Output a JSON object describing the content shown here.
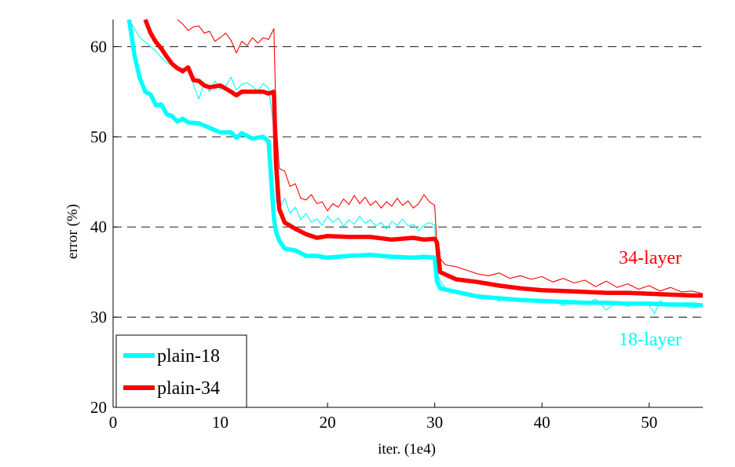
{
  "chart_data": {
    "type": "line",
    "xlabel": "iter. (1e4)",
    "ylabel": "error (%)",
    "xlim": [
      0,
      55
    ],
    "ylim": [
      20,
      63
    ],
    "x_ticks": [
      0,
      10,
      20,
      30,
      40,
      50
    ],
    "x_tick_labels": [
      "0",
      "10",
      "20",
      "30",
      "40",
      "50"
    ],
    "y_ticks": [
      20,
      30,
      40,
      50,
      60
    ],
    "y_tick_labels": [
      "20",
      "30",
      "40",
      "50",
      "60"
    ],
    "grid": "horizontal dashed",
    "legend": {
      "position": "bottom-left",
      "entries": [
        "plain-18",
        "plain-34"
      ]
    },
    "annotations": [
      {
        "text": "34-layer",
        "x": 52,
        "y": 34.5,
        "color": "#ff0000"
      },
      {
        "text": "18-layer",
        "x": 52,
        "y": 29.5,
        "color": "#00ffff"
      }
    ],
    "series": [
      {
        "name": "plain-18",
        "color": "#00ffff",
        "style": "thick",
        "x": [
          1.5,
          2,
          2.5,
          3,
          3.5,
          4,
          4.5,
          5,
          5.5,
          6,
          6.5,
          7,
          8,
          9,
          10,
          11,
          11.5,
          12,
          13,
          14,
          14.5,
          15,
          15.2,
          15.5,
          16,
          17,
          18,
          19,
          20,
          22,
          24,
          26,
          28,
          29,
          30,
          30.2,
          30.5,
          32,
          34,
          36,
          38,
          40,
          42,
          44,
          46,
          48,
          50,
          52,
          54,
          55
        ],
        "y": [
          63,
          59,
          56.5,
          55,
          54.7,
          53.5,
          53.6,
          52.5,
          52.3,
          51.7,
          52,
          51.6,
          51.5,
          51,
          50.5,
          50.5,
          49.9,
          50.4,
          49.8,
          50,
          49.5,
          41,
          39.5,
          38.5,
          37.6,
          37.4,
          36.8,
          36.8,
          36.6,
          36.8,
          36.9,
          36.7,
          36.6,
          36.7,
          36.6,
          34,
          33.2,
          32.8,
          32.3,
          32.1,
          31.9,
          31.8,
          31.7,
          31.6,
          31.6,
          31.5,
          31.5,
          31.4,
          31.4,
          31.3
        ]
      },
      {
        "name": "plain-34",
        "color": "#ff0000",
        "style": "thick",
        "x": [
          3,
          3.5,
          4,
          4.5,
          5,
          5.5,
          6,
          6.5,
          7,
          7.5,
          8,
          8.5,
          9,
          10,
          11,
          11.5,
          12,
          13,
          14,
          14.5,
          15,
          15.2,
          15.5,
          16,
          17,
          18,
          19,
          20,
          22,
          24,
          26,
          28,
          29,
          30,
          30.2,
          30.5,
          32,
          34,
          36,
          38,
          40,
          42,
          44,
          46,
          48,
          50,
          52,
          54,
          55
        ],
        "y": [
          63,
          61.5,
          60.5,
          59.8,
          58.9,
          58.1,
          57.6,
          57.3,
          57.7,
          56.3,
          56.2,
          55.7,
          55.5,
          55.7,
          55,
          54.6,
          55,
          55,
          55,
          54.8,
          55,
          47,
          42,
          40.5,
          39.8,
          39.2,
          38.8,
          39,
          38.9,
          38.9,
          38.6,
          38.8,
          38.6,
          38.7,
          38.3,
          35,
          34.2,
          33.9,
          33.5,
          33.2,
          33,
          32.9,
          32.8,
          32.7,
          32.7,
          32.6,
          32.5,
          32.4,
          32.4
        ]
      },
      {
        "name": "",
        "color": "#00ffff",
        "style": "thin",
        "x": [
          1.5,
          2,
          2.5,
          3,
          3.5,
          4,
          4.5,
          5,
          5.5,
          6,
          6.5,
          7,
          7.5,
          8,
          8.5,
          9,
          9.5,
          10,
          10.5,
          11,
          11.5,
          12,
          12.5,
          13,
          13.5,
          14,
          14.5,
          15,
          15.2,
          15.5,
          16,
          16.5,
          17,
          17.5,
          18,
          18.5,
          19,
          19.5,
          20,
          20.5,
          21,
          21.5,
          22,
          22.5,
          23,
          23.5,
          24,
          24.5,
          25,
          25.5,
          26,
          26.5,
          27,
          27.5,
          28,
          28.5,
          29,
          29.5,
          30,
          30.2,
          30.5,
          31,
          32,
          33,
          34,
          35,
          36,
          37,
          38,
          39,
          40,
          41,
          42,
          43,
          44,
          45,
          46,
          47,
          48,
          49,
          50,
          50.5,
          51,
          52,
          53,
          54,
          55
        ],
        "y": [
          63,
          62,
          61,
          60.5,
          60,
          59.5,
          58.8,
          58.2,
          58,
          57.5,
          57,
          57.6,
          55.8,
          54.2,
          56,
          55,
          56.2,
          55.3,
          55.6,
          56.6,
          55.2,
          55.8,
          56,
          55.6,
          55.1,
          55.9,
          55.4,
          51,
          43,
          42,
          43.2,
          41.5,
          42.2,
          40.8,
          41.5,
          40.5,
          40.9,
          40.2,
          41.2,
          40.5,
          41,
          40.1,
          40.8,
          40.3,
          41.2,
          40.4,
          40.8,
          40.1,
          40.5,
          39.8,
          40.6,
          40.2,
          40.9,
          40.1,
          40.3,
          39.6,
          40.2,
          40.5,
          40.2,
          35,
          34,
          33.2,
          33,
          32.6,
          32.2,
          32.4,
          31.8,
          32.1,
          31.7,
          31.9,
          31.6,
          31.8,
          31.3,
          31.9,
          31.4,
          32,
          30.8,
          31.6,
          31.2,
          31.7,
          31.3,
          30.4,
          31.8,
          31.2,
          31.4,
          31,
          31.3
        ]
      },
      {
        "name": "",
        "color": "#ff0000",
        "style": "thin",
        "x": [
          6,
          6.5,
          7,
          7.5,
          8,
          8.5,
          9,
          9.5,
          10,
          10.5,
          11,
          11.5,
          12,
          12.5,
          13,
          13.5,
          14,
          14.5,
          15,
          15.2,
          15.5,
          16,
          16.5,
          17,
          17.5,
          18,
          18.5,
          19,
          19.5,
          20,
          20.5,
          21,
          21.5,
          22,
          22.5,
          23,
          23.5,
          24,
          24.5,
          25,
          25.5,
          26,
          26.5,
          27,
          27.5,
          28,
          28.5,
          29,
          29.5,
          30,
          30.2,
          30.5,
          31,
          32,
          33,
          34,
          35,
          36,
          37,
          38,
          39,
          40,
          41,
          42,
          43,
          44,
          45,
          46,
          47,
          48,
          49,
          50,
          51,
          52,
          53,
          54,
          55
        ],
        "y": [
          63,
          62.5,
          61.8,
          62.2,
          62.3,
          61.5,
          61.7,
          60.6,
          61,
          61.5,
          60.7,
          59.3,
          60.6,
          60.1,
          61,
          60.4,
          61,
          60.8,
          62,
          52,
          46.5,
          46.2,
          44.5,
          44.8,
          43.2,
          43,
          43.6,
          42.6,
          42.8,
          41.8,
          42.6,
          42.2,
          43.1,
          42.5,
          43.5,
          42.6,
          43.3,
          42.4,
          42.9,
          42.1,
          42.8,
          42.3,
          43.2,
          42.4,
          42.9,
          42.1,
          42.6,
          43.6,
          42.8,
          42.4,
          38,
          36.5,
          35.8,
          35.6,
          35.2,
          34.8,
          34.6,
          34.9,
          34.3,
          34.6,
          34.2,
          34.5,
          33.9,
          34.3,
          33.8,
          34.1,
          33.4,
          34,
          33.3,
          33.7,
          33.1,
          33.5,
          32.9,
          33.3,
          32.8,
          32.9,
          32.6
        ]
      }
    ]
  }
}
